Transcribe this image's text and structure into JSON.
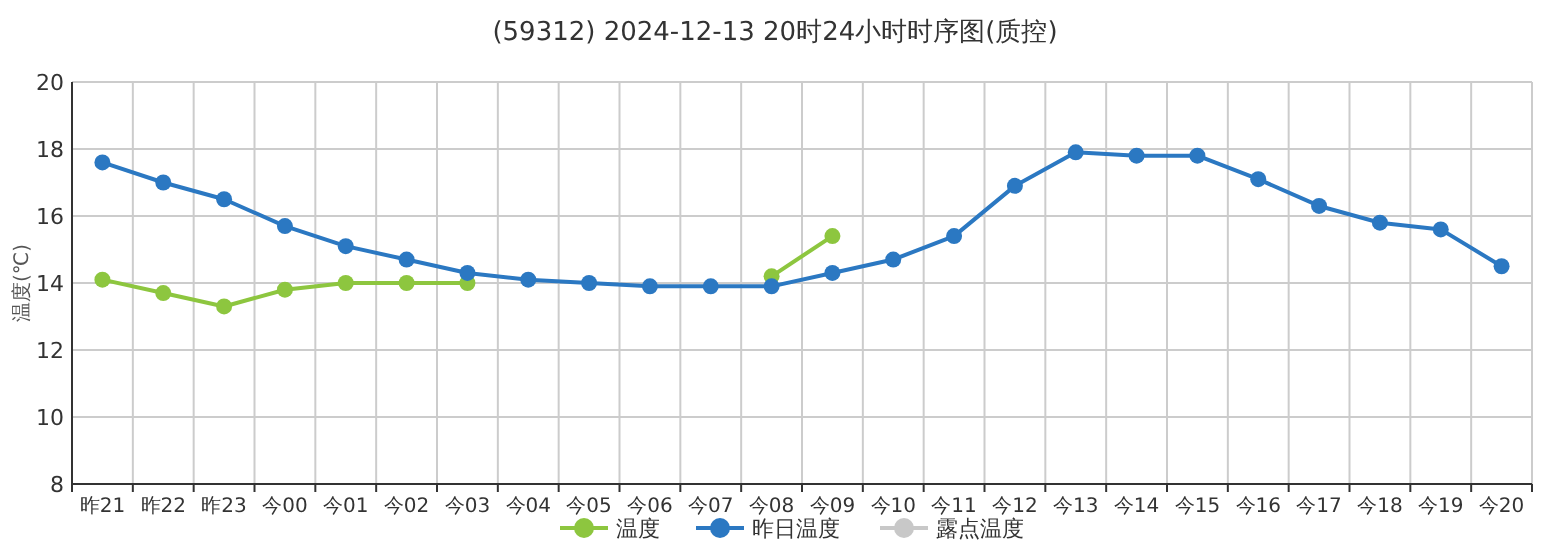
{
  "chart_data": {
    "type": "line",
    "title": "(59312) 2024-12-13 20时24小时时序图(质控)",
    "ylabel": "温度(℃)",
    "categories": [
      "昨21",
      "昨22",
      "昨23",
      "今00",
      "今01",
      "今02",
      "今03",
      "今04",
      "今05",
      "今06",
      "今07",
      "今08",
      "今09",
      "今10",
      "今11",
      "今12",
      "今13",
      "今14",
      "今15",
      "今16",
      "今17",
      "今18",
      "今19",
      "今20"
    ],
    "series": [
      {
        "name": "温度",
        "color": "#8dc63f",
        "values": [
          14.1,
          13.7,
          13.3,
          13.8,
          14.0,
          14.0,
          14.0,
          null,
          null,
          null,
          null,
          14.2,
          15.4,
          null,
          null,
          null,
          null,
          null,
          null,
          null,
          null,
          null,
          null,
          null
        ]
      },
      {
        "name": "昨日温度",
        "color": "#2b78c2",
        "values": [
          17.6,
          17.0,
          16.5,
          15.7,
          15.1,
          14.7,
          14.3,
          14.1,
          14.0,
          13.9,
          13.9,
          13.9,
          14.3,
          14.7,
          15.4,
          16.9,
          17.9,
          17.8,
          17.8,
          17.1,
          16.3,
          15.8,
          15.6,
          14.5
        ]
      },
      {
        "name": "露点温度",
        "color": "#c8c8c8",
        "values": [
          null,
          null,
          null,
          null,
          null,
          null,
          null,
          null,
          null,
          null,
          null,
          null,
          null,
          null,
          null,
          null,
          null,
          null,
          null,
          null,
          null,
          null,
          null,
          null
        ]
      }
    ],
    "ylim": [
      8,
      20
    ],
    "yticks": [
      8,
      10,
      12,
      14,
      16,
      18,
      20
    ],
    "grid": true,
    "legend": "bottom",
    "marker": "circle",
    "line_style": "solid"
  }
}
